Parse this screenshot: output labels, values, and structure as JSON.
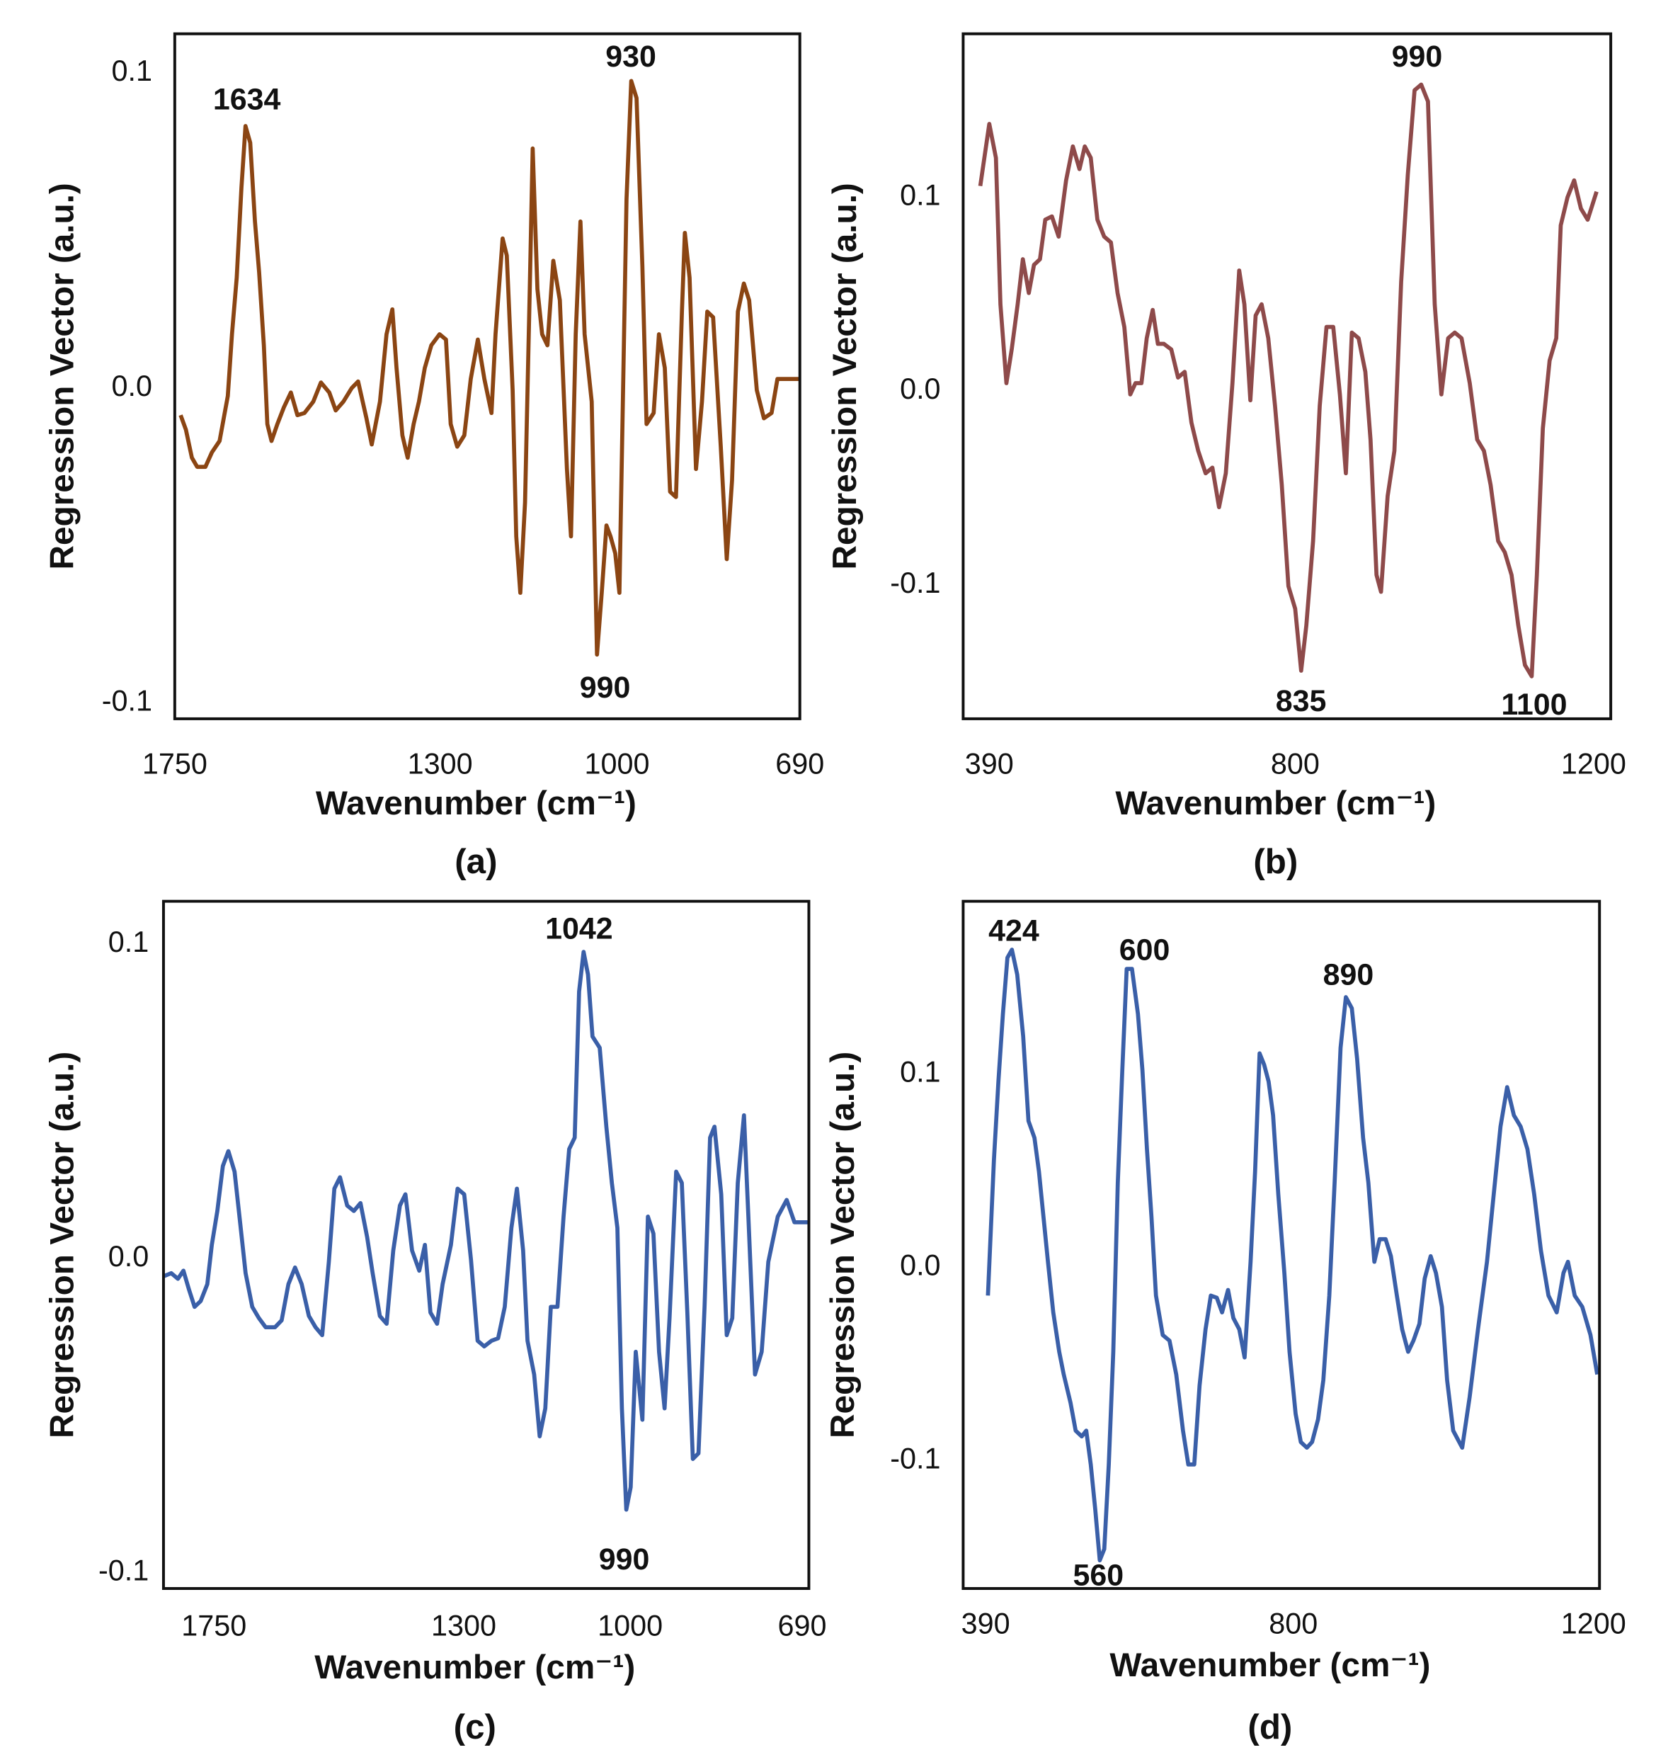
{
  "chart_data": [
    {
      "type": "line",
      "panel": "(a)",
      "x_label": "Wavenumber (cm⁻¹)",
      "y_label": "Regression Vector (a.u.)",
      "color": "#8b4513",
      "xlim": [
        1750,
        690
      ],
      "xticks": [
        1750,
        1300,
        1000,
        690
      ],
      "ylim": [
        -0.105,
        0.1125
      ],
      "yticks": [
        0.1,
        {
          "value": 0,
          "label": "0.0"
        },
        -0.1
      ],
      "annotations": [
        1634,
        930,
        990
      ],
      "x": [
        1740,
        1731,
        1721,
        1712,
        1698,
        1687,
        1674,
        1660,
        1653,
        1645,
        1637,
        1630,
        1622,
        1614,
        1607,
        1599,
        1593,
        1586,
        1576,
        1565,
        1553,
        1542,
        1530,
        1515,
        1502,
        1488,
        1477,
        1464,
        1450,
        1439,
        1425,
        1416,
        1402,
        1391,
        1381,
        1374,
        1364,
        1355,
        1345,
        1336,
        1326,
        1315,
        1301,
        1290,
        1282,
        1271,
        1259,
        1248,
        1236,
        1225,
        1213,
        1206,
        1194,
        1187,
        1177,
        1171,
        1164,
        1156,
        1148,
        1143,
        1135,
        1127,
        1118,
        1108,
        1097,
        1085,
        1078,
        1070,
        1062,
        1055,
        1043,
        1034,
        1026,
        1018,
        1011,
        1003,
        996,
        984,
        976,
        967,
        957,
        950,
        938,
        929,
        919,
        910,
        900,
        890,
        885,
        877,
        866,
        856,
        847,
        837,
        824,
        814,
        805,
        795,
        785,
        776,
        763,
        751,
        738,
        728,
        709,
        690
      ],
      "values": [
        -0.0086,
        -0.0132,
        -0.0221,
        -0.025,
        -0.025,
        -0.0204,
        -0.0168,
        -0.0025,
        0.0171,
        0.035,
        0.0636,
        0.0832,
        0.0779,
        0.0529,
        0.0368,
        0.0136,
        -0.0114,
        -0.0168,
        -0.0114,
        -0.0061,
        -0.0014,
        -0.0086,
        -0.0079,
        -0.0043,
        0.0018,
        -0.0014,
        -0.0071,
        -0.0043,
        0,
        0.0021,
        -0.0096,
        -0.0179,
        -0.0043,
        0.0171,
        0.025,
        0.0064,
        -0.015,
        -0.0221,
        -0.0114,
        -0.0043,
        0.0064,
        0.0136,
        0.0171,
        0.0154,
        -0.0114,
        -0.0186,
        -0.015,
        0.0029,
        0.0154,
        0.0029,
        -0.0079,
        0.0171,
        0.0475,
        0.0421,
        -0.0007,
        -0.0471,
        -0.065,
        -0.0364,
        0.0314,
        0.0761,
        0.0314,
        0.0171,
        0.0136,
        0.0404,
        0.0279,
        -0.0257,
        -0.0471,
        0.0171,
        0.0529,
        0.0171,
        -0.0043,
        -0.0846,
        -0.065,
        -0.0436,
        -0.0471,
        -0.0525,
        -0.065,
        0.06,
        0.0975,
        0.0921,
        0.0386,
        -0.0114,
        -0.0079,
        0.0171,
        0.0064,
        -0.0329,
        -0.0346,
        0.0243,
        0.0493,
        0.035,
        -0.0257,
        -0.0043,
        0.0243,
        0.0225,
        -0.0186,
        -0.0543,
        -0.0293,
        0.0243,
        0.0332,
        0.0279,
        -0.0007,
        -0.0096,
        -0.0079,
        0.0029,
        0.0029,
        0.0029
      ]
    },
    {
      "type": "line",
      "panel": "(b)",
      "x_label": "Wavenumber (cm⁻¹)",
      "y_label": "Regression Vector (a.u.)",
      "color": "#8e4a4a",
      "xlim": [
        355,
        1223
      ],
      "xticks": [
        390,
        800,
        1200
      ],
      "ylim": [
        -0.169,
        0.1843
      ],
      "yticks": [
        0.1,
        {
          "value": 0,
          "label": "0.0"
        },
        -0.1
      ],
      "annotations": [
        990,
        835,
        1100
      ],
      "x": [
        378,
        390,
        399,
        405,
        413,
        420,
        428,
        435,
        443,
        450,
        458,
        465,
        474,
        483,
        493,
        502,
        511,
        518,
        526,
        535,
        544,
        553,
        562,
        571,
        579,
        586,
        594,
        601,
        609,
        616,
        624,
        634,
        643,
        652,
        661,
        670,
        680,
        689,
        698,
        707,
        716,
        725,
        732,
        740,
        747,
        755,
        764,
        773,
        782,
        791,
        800,
        808,
        815,
        824,
        833,
        842,
        851,
        860,
        868,
        876,
        885,
        894,
        901,
        909,
        915,
        924,
        933,
        942,
        951,
        960,
        969,
        978,
        987,
        996,
        1005,
        1014,
        1023,
        1034,
        1044,
        1053,
        1062,
        1072,
        1081,
        1090,
        1099,
        1108,
        1117,
        1124,
        1132,
        1141,
        1150,
        1156,
        1165,
        1174,
        1183,
        1192,
        1204
      ],
      "values": [
        0.1058,
        0.1378,
        0.1203,
        0.0448,
        0.0041,
        0.0215,
        0.0448,
        0.068,
        0.0506,
        0.0651,
        0.068,
        0.0884,
        0.0901,
        0.0797,
        0.1087,
        0.1262,
        0.1145,
        0.1262,
        0.1203,
        0.0884,
        0.0797,
        0.0767,
        0.0506,
        0.0331,
        -0.0017,
        0.0041,
        0.0041,
        0.0273,
        0.0419,
        0.0244,
        0.0244,
        0.0215,
        0.007,
        0.0099,
        -0.0163,
        -0.0308,
        -0.0424,
        -0.0395,
        -0.0599,
        -0.0424,
        0.0041,
        0.0622,
        0.0448,
        -0.0047,
        0.039,
        0.0448,
        0.0273,
        -0.0076,
        -0.0483,
        -0.1006,
        -0.1122,
        -0.1442,
        -0.1209,
        -0.0773,
        -0.0076,
        0.0331,
        0.0331,
        -0.0017,
        -0.0424,
        0.0302,
        0.0273,
        0.0099,
        -0.025,
        -0.0948,
        -0.1035,
        -0.0541,
        -0.0308,
        0.0564,
        0.1116,
        0.1552,
        0.1581,
        0.1494,
        0.0448,
        -0.0017,
        0.0273,
        0.0302,
        0.0273,
        0.0041,
        -0.025,
        -0.0308,
        -0.0483,
        -0.0773,
        -0.0831,
        -0.0948,
        -0.1209,
        -0.1413,
        -0.1471,
        -0.0948,
        -0.0192,
        0.0157,
        0.0273,
        0.0855,
        0.1,
        0.1087,
        0.0942,
        0.0884,
        0.1029
      ]
    },
    {
      "type": "line",
      "panel": "(c)",
      "x_label": "Wavenumber (cm⁻¹)",
      "y_label": "Regression Vector (a.u.)",
      "color": "#3a5fa8",
      "xlim": [
        1841,
        678
      ],
      "xticks": [
        1750,
        1300,
        1000,
        690
      ],
      "ylim": [
        -0.105,
        0.1136
      ],
      "yticks": [
        0.1,
        {
          "value": 0,
          "label": "0.0"
        },
        -0.1
      ],
      "annotations": [
        1042,
        990
      ],
      "x": [
        1841,
        1827,
        1815,
        1805,
        1795,
        1785,
        1774,
        1762,
        1754,
        1744,
        1734,
        1724,
        1713,
        1703,
        1693,
        1681,
        1669,
        1657,
        1640,
        1628,
        1616,
        1604,
        1592,
        1579,
        1567,
        1555,
        1543,
        1533,
        1523,
        1510,
        1498,
        1486,
        1474,
        1464,
        1451,
        1439,
        1427,
        1415,
        1405,
        1393,
        1380,
        1370,
        1360,
        1348,
        1338,
        1323,
        1311,
        1299,
        1287,
        1275,
        1263,
        1250,
        1238,
        1226,
        1214,
        1204,
        1193,
        1185,
        1173,
        1163,
        1153,
        1143,
        1131,
        1120,
        1110,
        1100,
        1092,
        1084,
        1076,
        1068,
        1055,
        1043,
        1033,
        1023,
        1015,
        1007,
        999,
        990,
        978,
        968,
        958,
        948,
        938,
        929,
        917,
        907,
        897,
        887,
        877,
        866,
        856,
        848,
        836,
        826,
        816,
        806,
        795,
        787,
        775,
        763,
        751,
        734,
        718,
        704,
        678
      ],
      "values": [
        -0.0057,
        -0.0047,
        -0.0065,
        -0.0039,
        -0.01,
        -0.0154,
        -0.0136,
        -0.0082,
        0.0043,
        0.0151,
        0.0294,
        0.0341,
        0.0276,
        0.0115,
        -0.0047,
        -0.0154,
        -0.019,
        -0.0219,
        -0.0219,
        -0.0197,
        -0.0082,
        -0.0029,
        -0.0082,
        -0.0183,
        -0.0219,
        -0.0244,
        -0.0011,
        0.0222,
        0.0258,
        0.0168,
        0.0151,
        0.0176,
        0.0068,
        -0.0047,
        -0.0183,
        -0.0208,
        0.0025,
        0.0168,
        0.0204,
        0.0025,
        -0.0039,
        0.0043,
        -0.0172,
        -0.0208,
        -0.0082,
        0.0043,
        0.0222,
        0.0204,
        -0.0004,
        -0.0262,
        -0.028,
        -0.0262,
        -0.0254,
        -0.0154,
        0.0097,
        0.0222,
        0.0025,
        -0.0262,
        -0.0369,
        -0.0566,
        -0.0477,
        -0.0154,
        -0.0154,
        0.0133,
        0.0348,
        0.0384,
        0.0849,
        0.0975,
        0.0903,
        0.0706,
        0.067,
        0.0419,
        0.024,
        0.0097,
        -0.0477,
        -0.0799,
        -0.0728,
        -0.0297,
        -0.0513,
        0.0133,
        0.0079,
        -0.0297,
        -0.0477,
        -0.019,
        0.0276,
        0.024,
        -0.0172,
        -0.0638,
        -0.062,
        -0.0154,
        0.0384,
        0.0419,
        0.0204,
        -0.0244,
        -0.019,
        0.024,
        0.0455,
        0.0133,
        -0.0369,
        -0.0297,
        -0.0011,
        0.0133,
        0.0186,
        0.0115,
        0.0115
      ]
    },
    {
      "type": "line",
      "panel": "(d)",
      "x_label": "Wavenumber (cm⁻¹)",
      "y_label": "Regression Vector (a.u.)",
      "color": "#3a5fa8",
      "xlim": [
        360,
        1208
      ],
      "xticks": [
        390,
        800,
        1200
      ],
      "ylim": [
        -0.1662,
        0.1895
      ],
      "yticks": [
        0.1,
        {
          "value": 0,
          "label": "0.0"
        },
        -0.1
      ],
      "annotations": [
        424,
        600,
        890,
        560
      ],
      "x": [
        393,
        401,
        407,
        413,
        419,
        425,
        432,
        440,
        447,
        455,
        461,
        467,
        473,
        480,
        488,
        494,
        503,
        510,
        518,
        524,
        530,
        536,
        542,
        548,
        554,
        560,
        566,
        572,
        578,
        585,
        593,
        599,
        605,
        611,
        617,
        626,
        635,
        644,
        653,
        660,
        668,
        675,
        683,
        690,
        698,
        705,
        713,
        720,
        728,
        735,
        743,
        749,
        755,
        761,
        767,
        773,
        780,
        788,
        795,
        803,
        810,
        818,
        825,
        833,
        840,
        848,
        855,
        863,
        870,
        878,
        885,
        893,
        900,
        908,
        915,
        923,
        930,
        938,
        945,
        953,
        960,
        968,
        975,
        983,
        990,
        998,
        1005,
        1013,
        1025,
        1035,
        1046,
        1058,
        1067,
        1076,
        1085,
        1094,
        1103,
        1112,
        1121,
        1130,
        1140,
        1151,
        1160,
        1166,
        1175,
        1185,
        1196,
        1205
      ],
      "values": [
        -0.0146,
        0.0554,
        0.0962,
        0.1312,
        0.1603,
        0.1644,
        0.1516,
        0.1195,
        0.0758,
        0.0671,
        0.0496,
        0.0262,
        0.0029,
        -0.0233,
        -0.0437,
        -0.0554,
        -0.07,
        -0.0845,
        -0.0875,
        -0.0845,
        -0.102,
        -0.1254,
        -0.1516,
        -0.1458,
        -0.102,
        -0.0437,
        0.0437,
        0.102,
        0.1545,
        0.1545,
        0.1312,
        0.102,
        0.0612,
        0.0262,
        -0.0146,
        -0.035,
        -0.0379,
        -0.0554,
        -0.0845,
        -0.102,
        -0.102,
        -0.0612,
        -0.0321,
        -0.0146,
        -0.0157,
        -0.0233,
        -0.0117,
        -0.0262,
        -0.0321,
        -0.0466,
        0.0029,
        0.0496,
        0.1108,
        0.105,
        0.0962,
        0.0787,
        0.0379,
        -0.0029,
        -0.0437,
        -0.0758,
        -0.0904,
        -0.0933,
        -0.0904,
        -0.0787,
        -0.0583,
        -0.0146,
        0.0437,
        0.1137,
        0.1399,
        0.1341,
        0.1079,
        0.0671,
        0.0437,
        0.0029,
        0.0146,
        0.0146,
        0.0058,
        -0.0146,
        -0.0321,
        -0.0437,
        -0.0379,
        -0.0292,
        -0.0058,
        0.0058,
        -0.0029,
        -0.0204,
        -0.0583,
        -0.0845,
        -0.0933,
        -0.0671,
        -0.0321,
        0.0029,
        0.0379,
        0.0729,
        0.0933,
        0.0787,
        0.0729,
        0.0612,
        0.0379,
        0.0087,
        -0.0146,
        -0.0233,
        -0.0029,
        0.0029,
        -0.0146,
        -0.0204,
        -0.035,
        -0.0554
      ]
    }
  ]
}
